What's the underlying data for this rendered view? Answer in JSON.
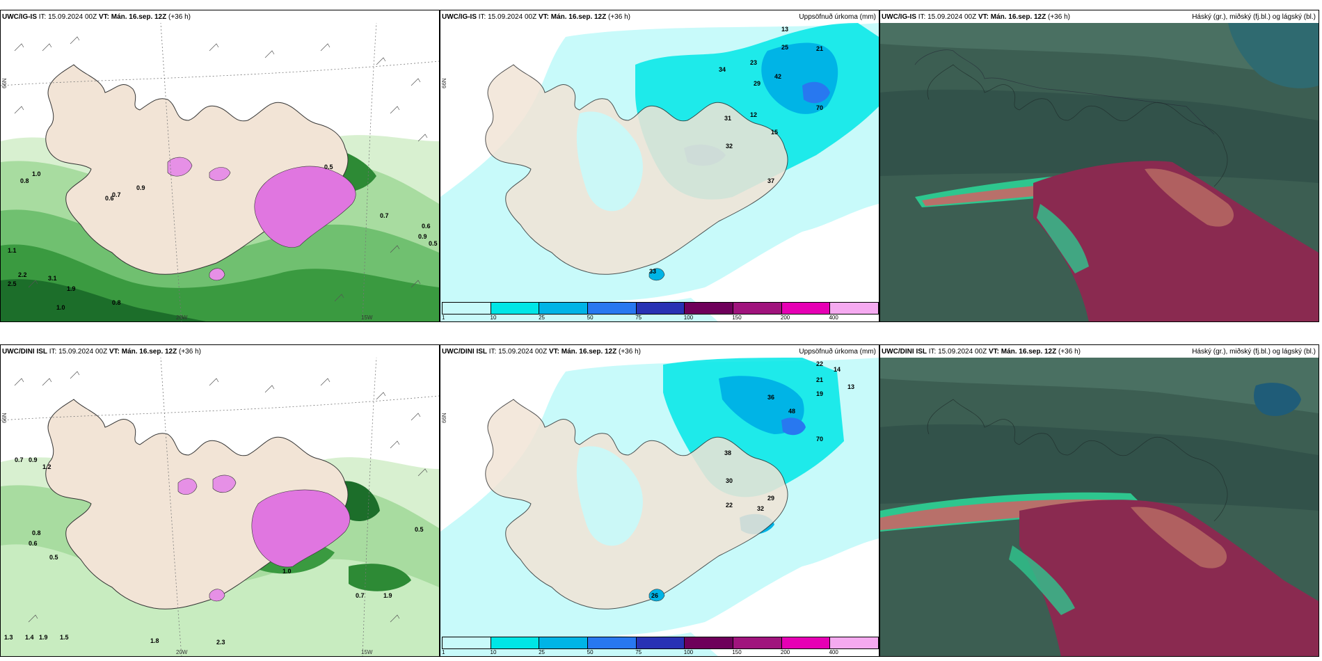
{
  "panels": [
    {
      "model": "UWC/IG-IS",
      "it": "15.09.2024 00Z",
      "vt": "Mán. 16.sep. 12Z",
      "lead": "(+36 h)",
      "right_title": ""
    },
    {
      "model": "UWC/IG-IS",
      "it": "15.09.2024 00Z",
      "vt": "Mán. 16.sep. 12Z",
      "lead": "(+36 h)",
      "right_title": "Uppsöfnuð úrkoma (mm)"
    },
    {
      "model": "UWC/IG-IS",
      "it": "15.09.2024 00Z",
      "vt": "Mán. 16.sep. 12Z",
      "lead": "(+36 h)",
      "right_title": "Háský (gr.), miðský (fj.bl.) og lágský (bl.)"
    },
    {
      "model": "UWC/DINI ISL",
      "it": "15.09.2024 00Z",
      "vt": "Mán. 16.sep. 12Z",
      "lead": "(+36 h)",
      "right_title": ""
    },
    {
      "model": "UWC/DINI ISL",
      "it": "15.09.2024 00Z",
      "vt": "Mán. 16.sep. 12Z",
      "lead": "(+36 h)",
      "right_title": "Uppsöfnuð úrkoma (mm)"
    },
    {
      "model": "UWC/DINI ISL",
      "it": "15.09.2024 00Z",
      "vt": "Mán. 16.sep. 12Z",
      "lead": "(+36 h)",
      "right_title": "Háský (gr.), miðský (fj.bl.) og lágský (bl.)"
    }
  ],
  "labels": {
    "it_prefix": "IT:",
    "vt_prefix": "VT:",
    "lon_20": "20W",
    "lon_15": "15W",
    "lat_66": "66N"
  },
  "colorbar": {
    "ticks": [
      "1",
      "10",
      "25",
      "50",
      "75",
      "100",
      "150",
      "200",
      "400"
    ],
    "colors": [
      "#c8fafa",
      "#00e6e6",
      "#00b4e6",
      "#2878f0",
      "#2832b4",
      "#6e005a",
      "#a0147d",
      "#e600b4",
      "#f5aaf0"
    ]
  },
  "numbers_ig": [
    "13",
    "25",
    "21",
    "23",
    "42",
    "34",
    "29",
    "70",
    "31",
    "32",
    "12",
    "15",
    "37",
    "33"
  ],
  "numbers_dini": [
    "22",
    "14",
    "21",
    "19",
    "13",
    "36",
    "48",
    "70",
    "38",
    "30",
    "22",
    "32",
    "29",
    "26"
  ],
  "wind_ig": [
    "1.0",
    "0.8",
    "0.9",
    "0.7",
    "1.1",
    "0.6",
    "0.5",
    "2.5",
    "2.2",
    "3.1",
    "1.9",
    "0.9",
    "0.7",
    "0.6",
    "0.8",
    "1.0",
    "0.5"
  ],
  "wind_dini": [
    "0.9",
    "0.7",
    "1.2",
    "0.8",
    "0.6",
    "0.5",
    "1.3",
    "1.4",
    "1.9",
    "1.5",
    "2.3",
    "1.8",
    "0.7",
    "1.0",
    "0.5",
    "1.9"
  ]
}
